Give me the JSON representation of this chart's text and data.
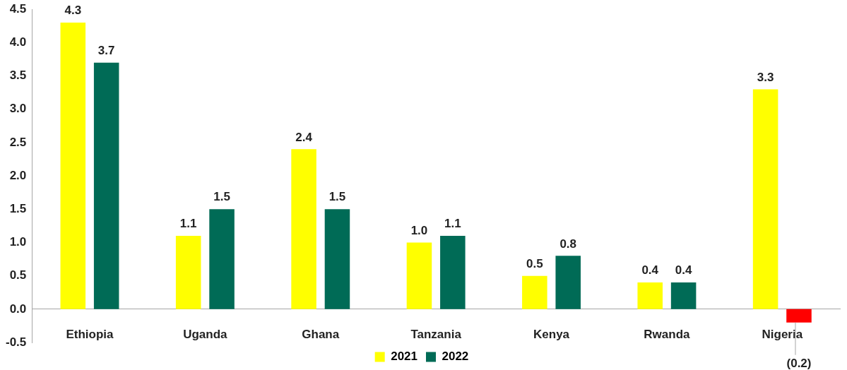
{
  "chart_data": {
    "type": "bar",
    "categories": [
      "Ethiopia",
      "Uganda",
      "Ghana",
      "Tanzania",
      "Kenya",
      "Rwanda",
      "Nigeria"
    ],
    "series": [
      {
        "name": "2021",
        "color": "#ffff00",
        "values": [
          4.3,
          1.1,
          2.4,
          1.0,
          0.5,
          0.4,
          3.3
        ],
        "value_labels": [
          "4.3",
          "1.1",
          "2.4",
          "1.0",
          "0.5",
          "0.4",
          "3.3"
        ]
      },
      {
        "name": "2022",
        "color": "#006b56",
        "colors": [
          "#006b56",
          "#006b56",
          "#006b56",
          "#006b56",
          "#006b56",
          "#006b56",
          "#ff0000"
        ],
        "values": [
          3.7,
          1.5,
          1.5,
          1.1,
          0.8,
          0.4,
          -0.2
        ],
        "value_labels": [
          "3.7",
          "1.5",
          "1.5",
          "1.1",
          "0.8",
          "0.4",
          "(0.2)"
        ]
      }
    ],
    "ylim": [
      -0.5,
      4.5
    ],
    "yticks": [
      {
        "value": -0.5,
        "label": "-0.5"
      },
      {
        "value": 0,
        "label": "0.0"
      },
      {
        "value": 0.5,
        "label": "0.5"
      },
      {
        "value": 1,
        "label": "1.0"
      },
      {
        "value": 1.5,
        "label": "1.5"
      },
      {
        "value": 2,
        "label": "2.0"
      },
      {
        "value": 2.5,
        "label": "2.5"
      },
      {
        "value": 3,
        "label": "3.0"
      },
      {
        "value": 3.5,
        "label": "3.5"
      },
      {
        "value": 4,
        "label": "4.0"
      },
      {
        "value": 4.5,
        "label": "4.5"
      }
    ],
    "grid": false,
    "legend": "bottom"
  }
}
